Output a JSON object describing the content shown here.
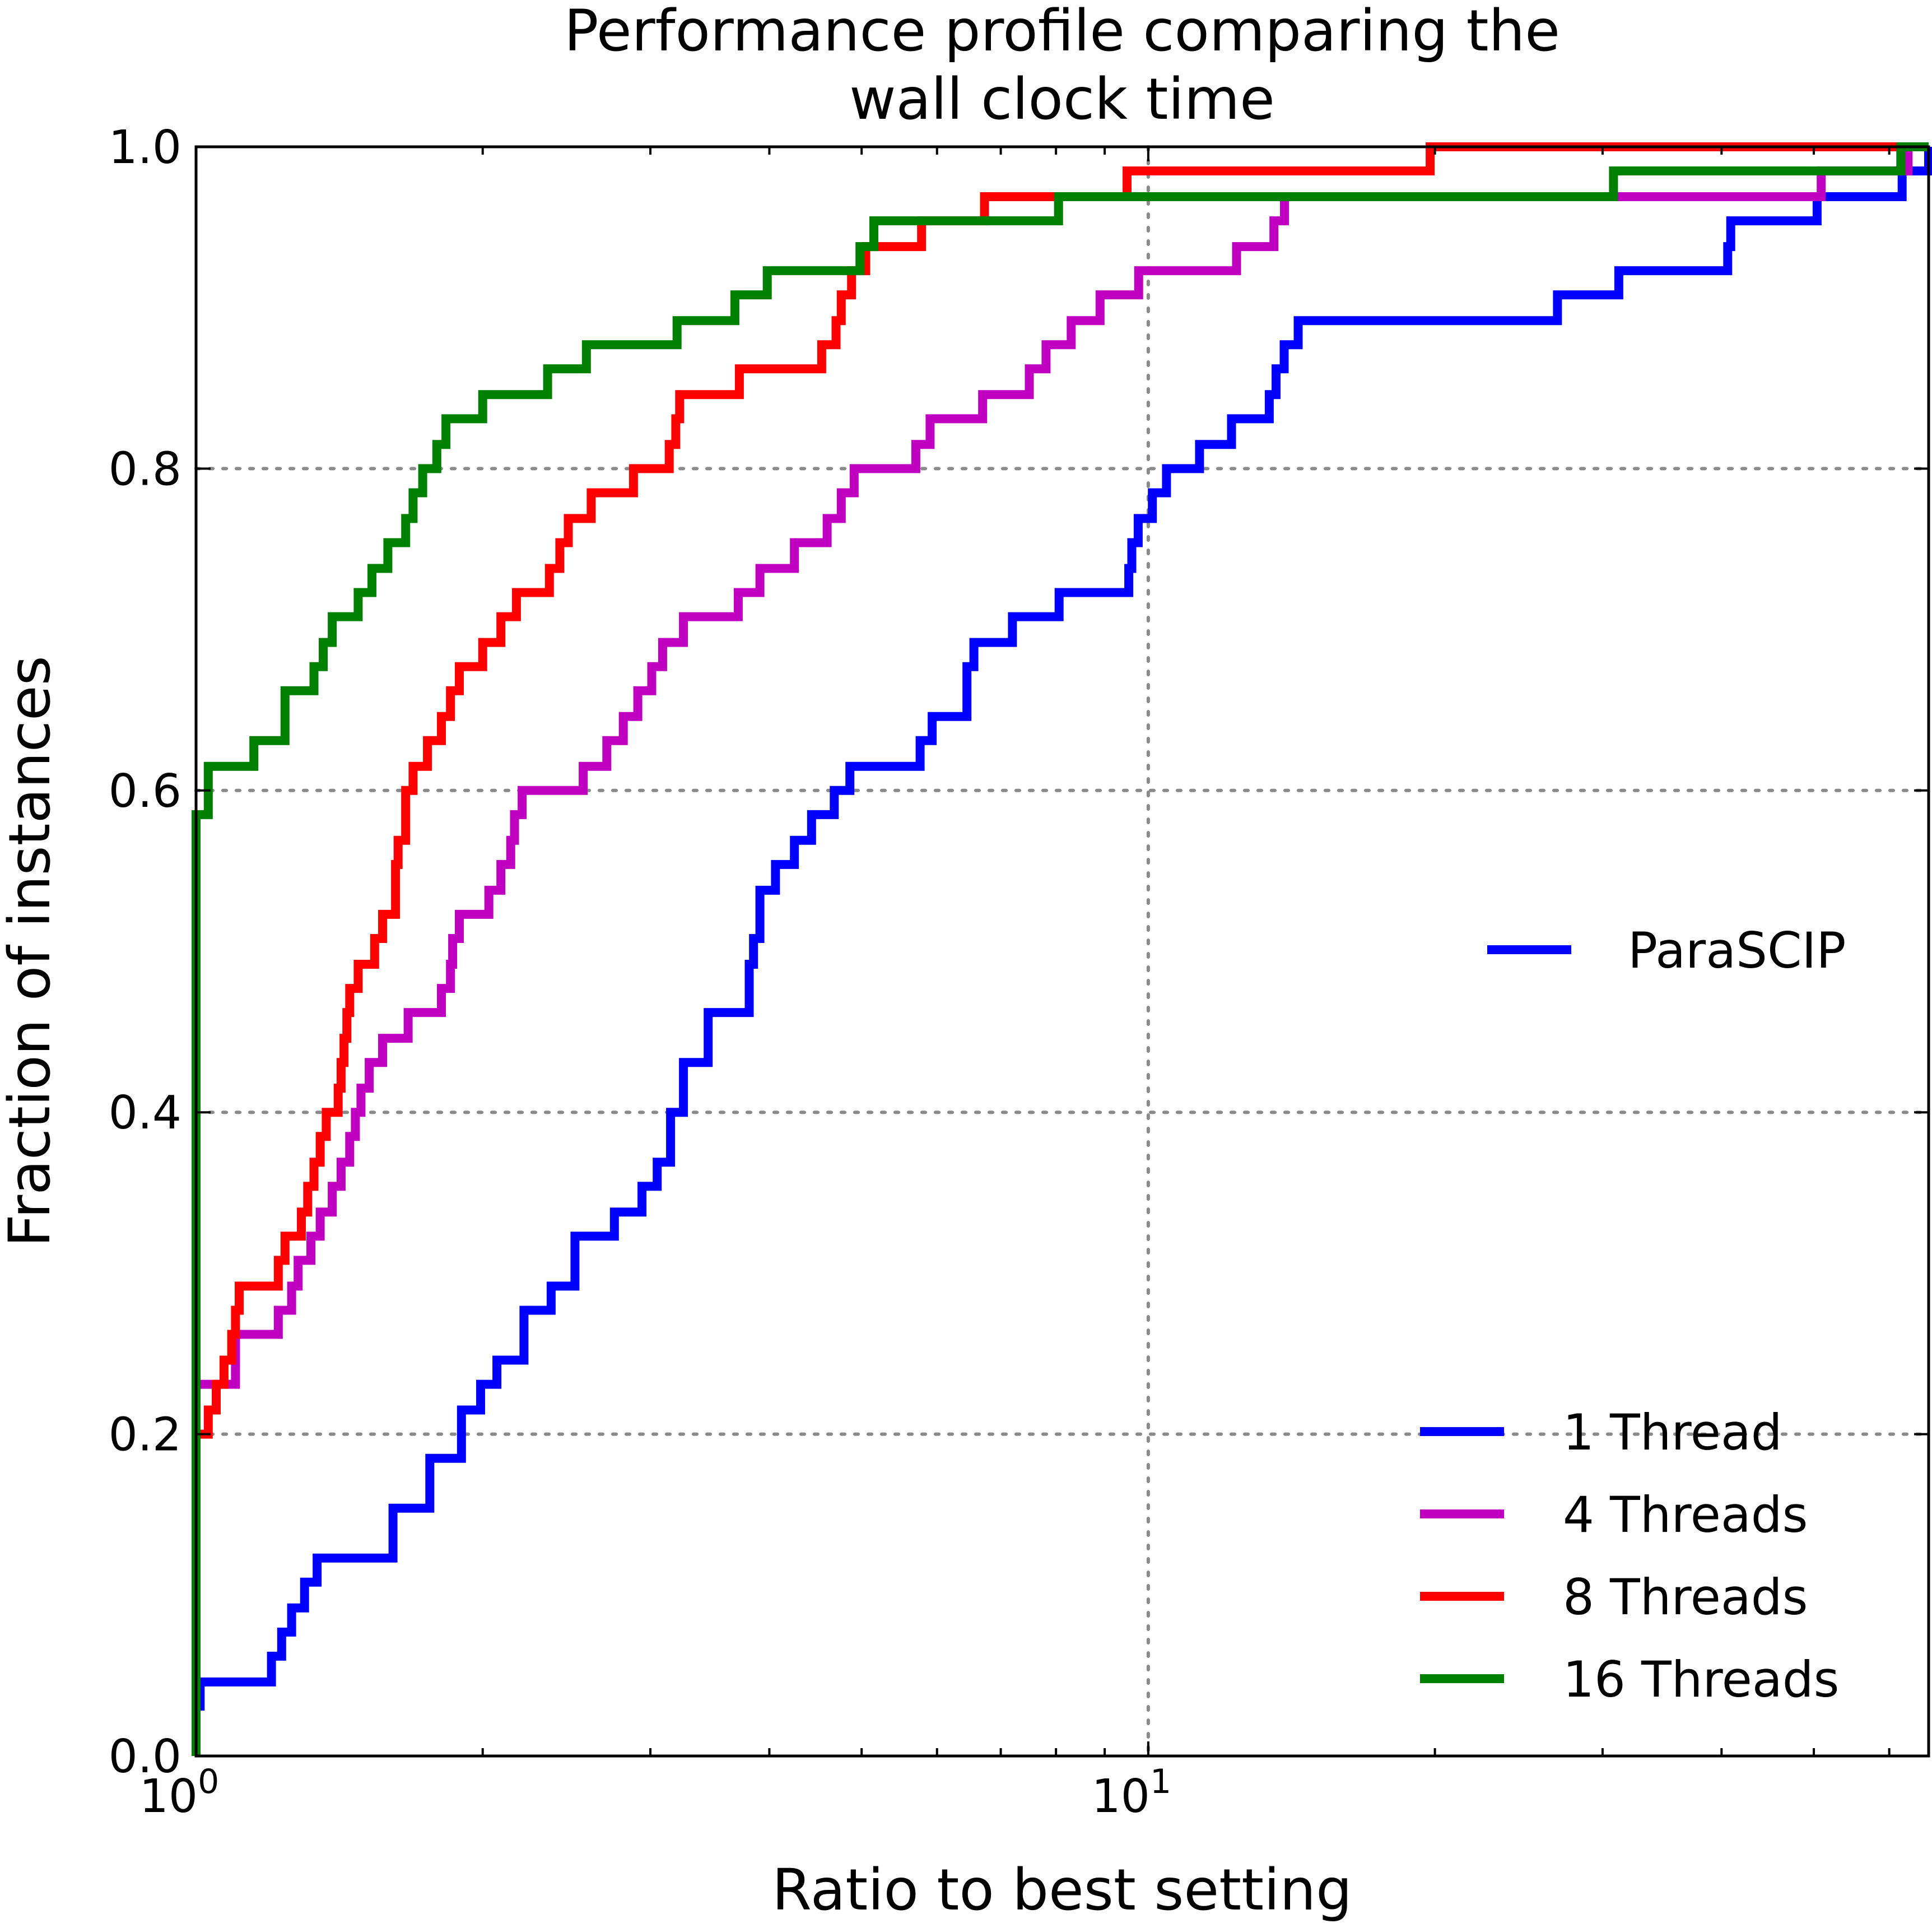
{
  "chart_data": {
    "type": "line",
    "title": [
      "Performance profile comparing the",
      "wall clock time"
    ],
    "xlabel": "Ratio to best setting",
    "ylabel": "Fraction of instances",
    "x_scale": "log",
    "xlim": [
      1,
      66
    ],
    "ylim": [
      0,
      1
    ],
    "x_ticks": [
      {
        "value": 1,
        "base": "10",
        "exp": "0"
      },
      {
        "value": 10,
        "base": "10",
        "exp": "1"
      }
    ],
    "y_ticks": [
      "0.0",
      "0.2",
      "0.4",
      "0.6",
      "0.8",
      "1.0"
    ],
    "grid": true,
    "legend_title": "ParaSCIP",
    "legend_position": "lower-right",
    "series": [
      {
        "name": "1 Thread",
        "color": "#0000ff",
        "points": [
          [
            1.0,
            0.0
          ],
          [
            1.0,
            0.031
          ],
          [
            1.01,
            0.046
          ],
          [
            1.2,
            0.062
          ],
          [
            1.23,
            0.077
          ],
          [
            1.26,
            0.092
          ],
          [
            1.3,
            0.108
          ],
          [
            1.34,
            0.123
          ],
          [
            1.61,
            0.154
          ],
          [
            1.76,
            0.185
          ],
          [
            1.9,
            0.215
          ],
          [
            1.99,
            0.231
          ],
          [
            2.07,
            0.246
          ],
          [
            2.21,
            0.277
          ],
          [
            2.36,
            0.292
          ],
          [
            2.5,
            0.323
          ],
          [
            2.75,
            0.338
          ],
          [
            2.94,
            0.354
          ],
          [
            3.05,
            0.369
          ],
          [
            3.15,
            0.4
          ],
          [
            3.25,
            0.431
          ],
          [
            3.45,
            0.462
          ],
          [
            3.81,
            0.492
          ],
          [
            3.85,
            0.508
          ],
          [
            3.91,
            0.538
          ],
          [
            4.06,
            0.554
          ],
          [
            4.25,
            0.569
          ],
          [
            4.43,
            0.585
          ],
          [
            4.68,
            0.6
          ],
          [
            4.86,
            0.615
          ],
          [
            5.76,
            0.631
          ],
          [
            5.93,
            0.646
          ],
          [
            6.45,
            0.677
          ],
          [
            6.56,
            0.692
          ],
          [
            7.2,
            0.708
          ],
          [
            8.06,
            0.723
          ],
          [
            9.54,
            0.738
          ],
          [
            9.61,
            0.754
          ],
          [
            9.76,
            0.769
          ],
          [
            10.1,
            0.785
          ],
          [
            10.45,
            0.8
          ],
          [
            11.32,
            0.815
          ],
          [
            12.23,
            0.831
          ],
          [
            13.4,
            0.846
          ],
          [
            13.62,
            0.862
          ],
          [
            13.89,
            0.877
          ],
          [
            14.37,
            0.892
          ],
          [
            26.9,
            0.908
          ],
          [
            31.2,
            0.923
          ],
          [
            40.6,
            0.938
          ],
          [
            40.9,
            0.954
          ],
          [
            50.4,
            0.969
          ],
          [
            61.9,
            0.985
          ],
          [
            66,
            1.0
          ]
        ]
      },
      {
        "name": "4 Threads",
        "color": "#c000c0",
        "points": [
          [
            1.0,
            0.0
          ],
          [
            1.0,
            0.231
          ],
          [
            1.1,
            0.262
          ],
          [
            1.22,
            0.277
          ],
          [
            1.26,
            0.292
          ],
          [
            1.28,
            0.308
          ],
          [
            1.32,
            0.323
          ],
          [
            1.35,
            0.338
          ],
          [
            1.39,
            0.354
          ],
          [
            1.42,
            0.369
          ],
          [
            1.45,
            0.385
          ],
          [
            1.47,
            0.4
          ],
          [
            1.49,
            0.415
          ],
          [
            1.52,
            0.431
          ],
          [
            1.57,
            0.446
          ],
          [
            1.67,
            0.462
          ],
          [
            1.81,
            0.477
          ],
          [
            1.85,
            0.492
          ],
          [
            1.86,
            0.508
          ],
          [
            1.89,
            0.523
          ],
          [
            2.03,
            0.538
          ],
          [
            2.09,
            0.554
          ],
          [
            2.14,
            0.569
          ],
          [
            2.16,
            0.585
          ],
          [
            2.2,
            0.6
          ],
          [
            2.55,
            0.615
          ],
          [
            2.7,
            0.631
          ],
          [
            2.81,
            0.646
          ],
          [
            2.91,
            0.662
          ],
          [
            3.01,
            0.677
          ],
          [
            3.09,
            0.692
          ],
          [
            3.25,
            0.708
          ],
          [
            3.71,
            0.723
          ],
          [
            3.91,
            0.738
          ],
          [
            4.25,
            0.754
          ],
          [
            4.6,
            0.769
          ],
          [
            4.76,
            0.785
          ],
          [
            4.91,
            0.8
          ],
          [
            5.7,
            0.815
          ],
          [
            5.9,
            0.831
          ],
          [
            6.7,
            0.846
          ],
          [
            7.5,
            0.862
          ],
          [
            7.81,
            0.877
          ],
          [
            8.3,
            0.892
          ],
          [
            8.9,
            0.908
          ],
          [
            9.77,
            0.923
          ],
          [
            12.38,
            0.938
          ],
          [
            13.55,
            0.954
          ],
          [
            13.9,
            0.969
          ],
          [
            50.9,
            0.985
          ],
          [
            62.8,
            1.0
          ],
          [
            66,
            1.0
          ]
        ]
      },
      {
        "name": "8 Threads",
        "color": "#ff0000",
        "points": [
          [
            1.0,
            0.0
          ],
          [
            1.0,
            0.2
          ],
          [
            1.03,
            0.215
          ],
          [
            1.05,
            0.231
          ],
          [
            1.07,
            0.246
          ],
          [
            1.09,
            0.262
          ],
          [
            1.1,
            0.277
          ],
          [
            1.11,
            0.292
          ],
          [
            1.22,
            0.308
          ],
          [
            1.24,
            0.323
          ],
          [
            1.29,
            0.338
          ],
          [
            1.31,
            0.354
          ],
          [
            1.33,
            0.369
          ],
          [
            1.35,
            0.385
          ],
          [
            1.37,
            0.4
          ],
          [
            1.41,
            0.415
          ],
          [
            1.42,
            0.431
          ],
          [
            1.43,
            0.446
          ],
          [
            1.44,
            0.462
          ],
          [
            1.45,
            0.477
          ],
          [
            1.48,
            0.492
          ],
          [
            1.54,
            0.508
          ],
          [
            1.57,
            0.523
          ],
          [
            1.62,
            0.554
          ],
          [
            1.63,
            0.569
          ],
          [
            1.66,
            0.6
          ],
          [
            1.69,
            0.615
          ],
          [
            1.75,
            0.631
          ],
          [
            1.81,
            0.646
          ],
          [
            1.85,
            0.662
          ],
          [
            1.89,
            0.677
          ],
          [
            2.0,
            0.692
          ],
          [
            2.09,
            0.708
          ],
          [
            2.17,
            0.723
          ],
          [
            2.35,
            0.738
          ],
          [
            2.41,
            0.754
          ],
          [
            2.46,
            0.769
          ],
          [
            2.6,
            0.785
          ],
          [
            2.88,
            0.8
          ],
          [
            3.14,
            0.815
          ],
          [
            3.19,
            0.831
          ],
          [
            3.22,
            0.846
          ],
          [
            3.72,
            0.862
          ],
          [
            4.54,
            0.877
          ],
          [
            4.7,
            0.892
          ],
          [
            4.76,
            0.908
          ],
          [
            4.88,
            0.923
          ],
          [
            5.05,
            0.938
          ],
          [
            5.78,
            0.954
          ],
          [
            6.73,
            0.969
          ],
          [
            9.5,
            0.985
          ],
          [
            19.77,
            1.0
          ],
          [
            66,
            1.0
          ]
        ]
      },
      {
        "name": "16 Threads",
        "color": "#008000",
        "points": [
          [
            1.0,
            0.0
          ],
          [
            1.0,
            0.585
          ],
          [
            1.03,
            0.615
          ],
          [
            1.15,
            0.631
          ],
          [
            1.24,
            0.662
          ],
          [
            1.33,
            0.677
          ],
          [
            1.36,
            0.692
          ],
          [
            1.39,
            0.708
          ],
          [
            1.48,
            0.723
          ],
          [
            1.53,
            0.738
          ],
          [
            1.59,
            0.754
          ],
          [
            1.66,
            0.769
          ],
          [
            1.69,
            0.785
          ],
          [
            1.73,
            0.8
          ],
          [
            1.79,
            0.815
          ],
          [
            1.83,
            0.831
          ],
          [
            2.0,
            0.846
          ],
          [
            2.34,
            0.862
          ],
          [
            2.57,
            0.877
          ],
          [
            3.2,
            0.892
          ],
          [
            3.68,
            0.908
          ],
          [
            3.98,
            0.923
          ],
          [
            4.98,
            0.938
          ],
          [
            5.15,
            0.954
          ],
          [
            8.05,
            0.969
          ],
          [
            30.8,
            0.985
          ],
          [
            61.7,
            1.0
          ],
          [
            66,
            1.0
          ]
        ]
      }
    ]
  }
}
